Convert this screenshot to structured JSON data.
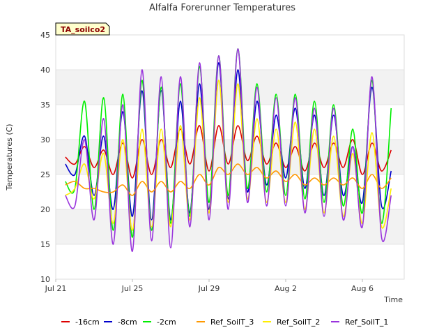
{
  "chart_data": {
    "type": "line",
    "title": "Alfalfa Forerunner Temperatures",
    "xlabel": "Time",
    "ylabel": "Temperatures (C)",
    "badge": "TA_soilco2",
    "xlim": [
      "Jul 21",
      "Aug 8"
    ],
    "ylim": [
      10,
      45
    ],
    "yticks": [
      10,
      15,
      20,
      25,
      30,
      35,
      40,
      45
    ],
    "xticks": [
      "Jul 21",
      "Jul 25",
      "Jul 29",
      "Aug 2",
      "Aug 6"
    ],
    "grid": "alternating horizontal bands",
    "legend_position": "bottom",
    "x": [
      "Jul 21 12:00",
      "Jul 22 00:00",
      "Jul 22 12:00",
      "Jul 23 00:00",
      "Jul 23 12:00",
      "Jul 24 00:00",
      "Jul 24 12:00",
      "Jul 25 00:00",
      "Jul 25 12:00",
      "Jul 26 00:00",
      "Jul 26 12:00",
      "Jul 27 00:00",
      "Jul 27 12:00",
      "Jul 28 00:00",
      "Jul 28 12:00",
      "Jul 29 00:00",
      "Jul 29 12:00",
      "Jul 30 00:00",
      "Jul 30 12:00",
      "Jul 31 00:00",
      "Jul 31 12:00",
      "Aug 1 00:00",
      "Aug 1 12:00",
      "Aug 2 00:00",
      "Aug 2 12:00",
      "Aug 3 00:00",
      "Aug 3 12:00",
      "Aug 4 00:00",
      "Aug 4 12:00",
      "Aug 5 00:00",
      "Aug 5 12:00",
      "Aug 6 00:00",
      "Aug 6 12:00",
      "Aug 7 00:00",
      "Aug 7 12:00"
    ],
    "series": [
      {
        "name": "-16cm",
        "color": "#dd0000",
        "values": [
          27.5,
          26.5,
          29.0,
          26.0,
          28.5,
          25.0,
          29.5,
          24.5,
          30.0,
          25.0,
          30.0,
          26.0,
          31.5,
          26.5,
          32.0,
          25.5,
          32.0,
          26.5,
          32.0,
          27.0,
          30.5,
          26.5,
          29.5,
          26.0,
          29.0,
          25.5,
          29.5,
          26.0,
          29.5,
          26.0,
          30.0,
          25.0,
          29.5,
          25.5,
          28.5
        ]
      },
      {
        "name": "-8cm",
        "color": "#0000cc",
        "values": [
          26.5,
          25.0,
          30.5,
          22.0,
          30.5,
          20.0,
          34.0,
          19.0,
          37.0,
          18.5,
          37.0,
          18.5,
          35.5,
          19.5,
          38.0,
          20.0,
          41.0,
          21.5,
          40.0,
          22.5,
          35.5,
          23.5,
          33.5,
          24.5,
          34.5,
          23.0,
          33.5,
          22.0,
          33.5,
          22.0,
          29.0,
          21.0,
          37.5,
          20.5,
          25.5
        ]
      },
      {
        "name": "-2cm",
        "color": "#00ee00",
        "values": [
          24.0,
          23.0,
          35.5,
          20.0,
          36.0,
          17.0,
          36.5,
          16.0,
          38.5,
          17.0,
          37.5,
          18.0,
          38.0,
          19.0,
          40.5,
          21.0,
          42.0,
          22.0,
          43.0,
          23.0,
          38.0,
          22.5,
          36.5,
          22.0,
          36.5,
          21.5,
          35.5,
          21.0,
          35.0,
          20.5,
          31.5,
          19.5,
          38.5,
          18.0,
          34.5
        ]
      },
      {
        "name": "Ref_SoilT_3",
        "color": "#ff9900",
        "values": [
          23.5,
          24.0,
          23.0,
          23.0,
          22.5,
          22.5,
          23.5,
          22.0,
          24.0,
          22.5,
          24.0,
          22.5,
          24.0,
          23.0,
          25.0,
          23.5,
          26.0,
          25.0,
          26.5,
          25.0,
          26.0,
          24.5,
          25.5,
          24.0,
          25.0,
          23.5,
          24.5,
          23.5,
          24.5,
          23.5,
          24.5,
          23.0,
          25.0,
          23.0,
          24.5
        ]
      },
      {
        "name": "Ref_SoilT_2",
        "color": "#ffee00",
        "values": [
          22.0,
          23.0,
          26.5,
          21.5,
          28.0,
          18.0,
          30.0,
          17.0,
          31.5,
          17.5,
          31.5,
          17.5,
          32.0,
          18.5,
          36.0,
          19.5,
          38.5,
          21.0,
          38.0,
          21.5,
          33.0,
          21.0,
          31.5,
          21.0,
          32.5,
          20.0,
          31.5,
          19.5,
          30.5,
          19.0,
          28.0,
          18.0,
          31.0,
          17.5,
          23.0
        ]
      },
      {
        "name": "Ref_SoilT_1",
        "color": "#9933dd",
        "values": [
          22.0,
          20.5,
          30.0,
          18.5,
          33.0,
          15.0,
          35.0,
          14.0,
          40.0,
          15.5,
          39.0,
          14.5,
          39.0,
          17.5,
          41.0,
          18.5,
          42.0,
          20.0,
          43.0,
          21.0,
          37.5,
          20.5,
          36.0,
          20.5,
          36.0,
          19.5,
          34.5,
          19.0,
          34.5,
          18.5,
          29.0,
          17.5,
          39.0,
          16.0,
          22.0
        ]
      }
    ]
  }
}
